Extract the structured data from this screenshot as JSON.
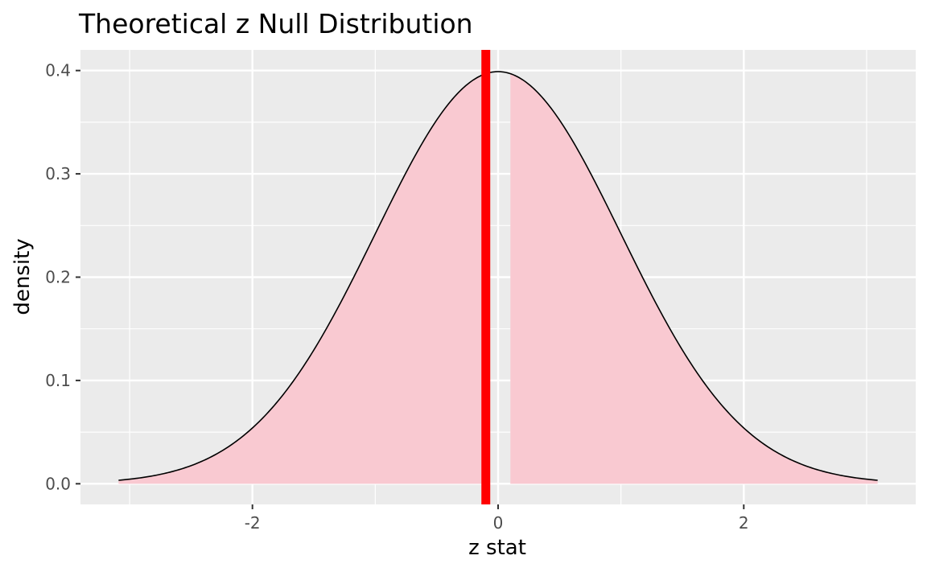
{
  "chart_data": {
    "type": "area",
    "title": "Theoretical z Null Distribution",
    "xlabel": "z stat",
    "ylabel": "density",
    "xlim": [
      -3.4,
      3.4
    ],
    "ylim": [
      -0.02,
      0.42
    ],
    "x_ticks": [
      -2,
      0,
      2
    ],
    "x_tick_labels": [
      "-2",
      "0",
      "2"
    ],
    "y_ticks": [
      0.0,
      0.1,
      0.2,
      0.3,
      0.4
    ],
    "y_tick_labels": [
      "0.0",
      "0.1",
      "0.2",
      "0.3",
      "0.4"
    ],
    "curve": {
      "distribution": "standard normal",
      "x_range": [
        -3.09,
        3.09
      ],
      "x": [
        -3.0,
        -2.5,
        -2.0,
        -1.5,
        -1.0,
        -0.5,
        0.0,
        0.5,
        1.0,
        1.5,
        2.0,
        2.5,
        3.0
      ],
      "y": [
        0.004,
        0.018,
        0.054,
        0.13,
        0.242,
        0.352,
        0.399,
        0.352,
        0.242,
        0.13,
        0.054,
        0.018,
        0.004
      ]
    },
    "shaded_regions": [
      {
        "x_from": -3.09,
        "x_to": -0.1
      },
      {
        "x_from": 0.1,
        "x_to": 3.09
      }
    ],
    "observed_stat": -0.1,
    "grid": true,
    "colors": {
      "panel_background": "#ebebeb",
      "grid": "#ffffff",
      "curve": "#000000",
      "shade": "#f9c9d1",
      "observed_line": "#ff0000"
    }
  }
}
